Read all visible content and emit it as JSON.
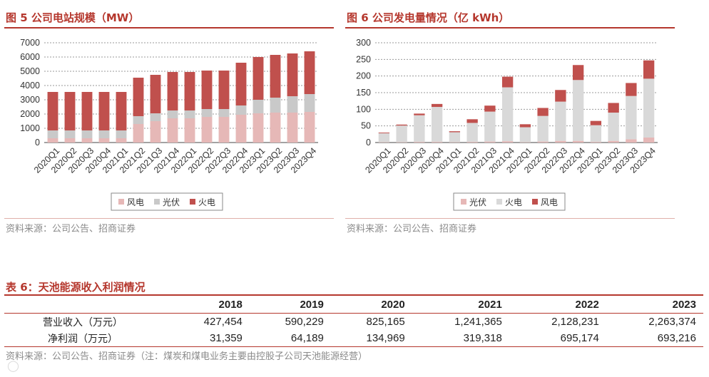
{
  "figure5": {
    "title": "图 5 公司电站规模（MW）",
    "source": "资料来源：公司公告、招商证券",
    "chart_data": {
      "type": "bar",
      "stacked": true,
      "title": "图 5 公司电站规模（MW）",
      "categories": [
        "2020Q1",
        "2020Q2",
        "2020Q3",
        "2020Q4",
        "2021Q1",
        "2021Q2",
        "2021Q3",
        "2021Q4",
        "2022Q1",
        "2022Q2",
        "2022Q3",
        "2022Q4",
        "2023Q1",
        "2023Q2",
        "2023Q3",
        "2023Q4"
      ],
      "ylim": [
        0,
        7000
      ],
      "yticks": [
        0,
        1000,
        2000,
        3000,
        4000,
        5000,
        6000,
        7000
      ],
      "grid": true,
      "legend_position": "bottom",
      "series": [
        {
          "name": "风电",
          "color": "#e6b8b7",
          "values": [
            300,
            300,
            300,
            300,
            300,
            1300,
            1500,
            1700,
            1700,
            1800,
            1800,
            1950,
            2050,
            2100,
            2100,
            2150
          ]
        },
        {
          "name": "光伏",
          "color": "#c9c9c9",
          "values": [
            550,
            550,
            550,
            550,
            550,
            550,
            550,
            550,
            550,
            550,
            550,
            650,
            950,
            1050,
            1150,
            1250
          ]
        },
        {
          "name": "火电",
          "color": "#c0504d",
          "values": [
            2700,
            2700,
            2700,
            2700,
            2700,
            2700,
            2700,
            2700,
            2700,
            2700,
            2700,
            3000,
            3000,
            3000,
            3000,
            3000
          ]
        }
      ]
    }
  },
  "figure6": {
    "title": "图 6 公司发电量情况（亿 kWh）",
    "source": "资料来源：公司公告、招商证券",
    "chart_data": {
      "type": "bar",
      "stacked": true,
      "title": "图 6 公司发电量情况（亿 kWh）",
      "categories": [
        "2020Q1",
        "2020Q2",
        "2020Q3",
        "2020Q4",
        "2021Q1",
        "2021Q2",
        "2021Q3",
        "2021Q4",
        "2022Q1",
        "2022Q2",
        "2022Q3",
        "2022Q4",
        "2023Q1",
        "2023Q2",
        "2023Q3",
        "2023Q4"
      ],
      "ylim": [
        0,
        300
      ],
      "yticks": [
        0,
        50,
        100,
        150,
        200,
        250,
        300
      ],
      "grid": true,
      "legend_position": "bottom",
      "series": [
        {
          "name": "光伏",
          "color": "#e6b8b7",
          "values": [
            1,
            1,
            2,
            2,
            1,
            2,
            3,
            4,
            1,
            3,
            5,
            5,
            2,
            5,
            10,
            15
          ]
        },
        {
          "name": "火电",
          "color": "#d9d9d9",
          "values": [
            27,
            50,
            80,
            105,
            30,
            57,
            90,
            162,
            45,
            77,
            118,
            183,
            50,
            85,
            130,
            177
          ]
        },
        {
          "name": "风电",
          "color": "#c0504d",
          "values": [
            2,
            3,
            5,
            9,
            3,
            11,
            18,
            32,
            9,
            24,
            35,
            45,
            13,
            29,
            39,
            55
          ]
        }
      ]
    }
  },
  "table6": {
    "title": "表 6：天池能源收入利润情况",
    "headers": [
      "",
      "2018",
      "2019",
      "2020",
      "2021",
      "2022",
      "2023"
    ],
    "rows": [
      {
        "label": "营业收入（万元）",
        "values": [
          "427,454",
          "590,229",
          "825,165",
          "1,241,365",
          "2,128,231",
          "2,263,374"
        ]
      },
      {
        "label": "净利润（万元）",
        "values": [
          "31,359",
          "64,189",
          "134,969",
          "319,318",
          "695,174",
          "693,216"
        ]
      }
    ],
    "source": "资料来源：公司公告、招商证券（注：煤炭和煤电业务主要由控股子公司天池能源经营）"
  }
}
